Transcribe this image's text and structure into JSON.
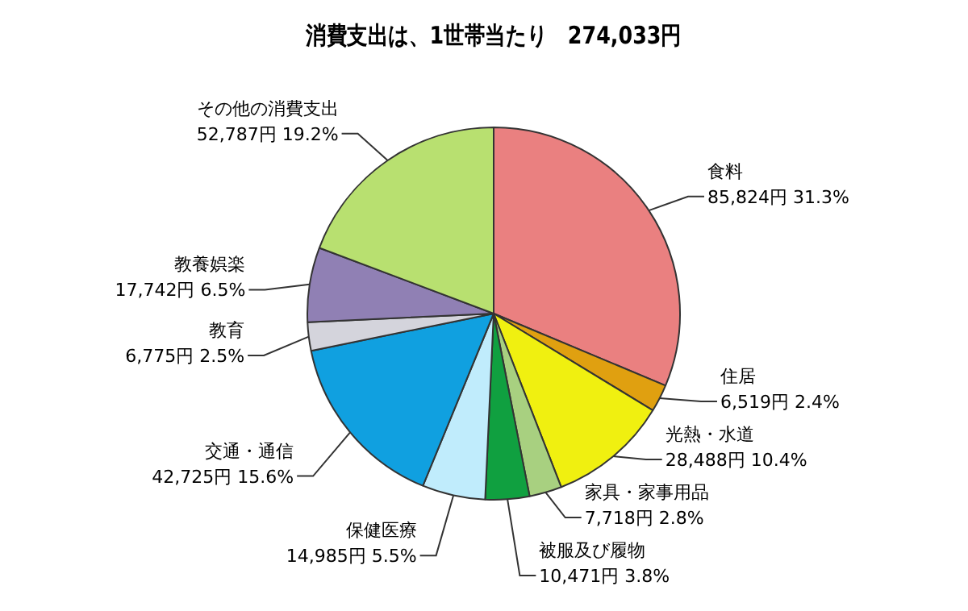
{
  "chart_data": {
    "type": "pie",
    "title": "消費支出は、1世帯当たり　274,033円",
    "categories": [
      "食料",
      "住居",
      "光熱・水道",
      "家具・家事用品",
      "被服及び履物",
      "保健医療",
      "交通・通信",
      "教育",
      "教養娯楽",
      "その他の消費支出"
    ],
    "values": [
      85824,
      6519,
      28488,
      7718,
      10471,
      14985,
      42725,
      6775,
      17742,
      52787
    ],
    "value_labels": [
      "85,824円 31.3%",
      "6,519円 2.4%",
      "28,488円 10.4%",
      "7,718円 2.8%",
      "10,471円 3.8%",
      "14,985円 5.5%",
      "42,725円 15.6%",
      "6,775円 2.5%",
      "17,742円 6.5%",
      "52,787円 19.2%"
    ],
    "colors": [
      "#ea8080",
      "#e0a010",
      "#f0f010",
      "#a8d080",
      "#10a040",
      "#c0ecfc",
      "#10a0e0",
      "#d4d4dc",
      "#9080b4",
      "#b8e070"
    ],
    "legend": false
  }
}
